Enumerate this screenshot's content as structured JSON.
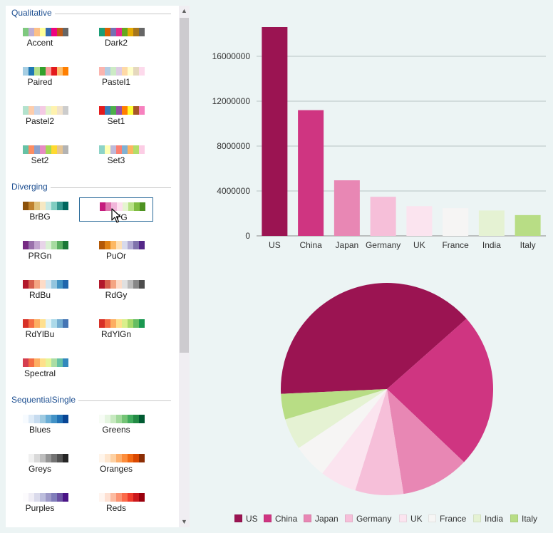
{
  "sidebar": {
    "groups": [
      {
        "title": "Qualitative",
        "palettes": [
          {
            "name": "Accent",
            "colors": [
              "#7fc97f",
              "#beaed4",
              "#fdc086",
              "#ffff99",
              "#386cb0",
              "#f0027f",
              "#bf5b17",
              "#666666"
            ]
          },
          {
            "name": "Dark2",
            "colors": [
              "#1b9e77",
              "#d95f02",
              "#7570b3",
              "#e7298a",
              "#66a61e",
              "#e6ab02",
              "#a6761d",
              "#666666"
            ]
          },
          {
            "name": "Paired",
            "colors": [
              "#a6cee3",
              "#1f78b4",
              "#b2df8a",
              "#33a02c",
              "#fb9a99",
              "#e31a1c",
              "#fdbf6f",
              "#ff7f00"
            ]
          },
          {
            "name": "Pastel1",
            "colors": [
              "#fbb4ae",
              "#b3cde3",
              "#ccebc5",
              "#decbe4",
              "#fed9a6",
              "#ffffcc",
              "#e5d8bd",
              "#fddaec"
            ]
          },
          {
            "name": "Pastel2",
            "colors": [
              "#b3e2cd",
              "#fdcdac",
              "#cbd5e8",
              "#f4cae4",
              "#e6f5c9",
              "#fff2ae",
              "#f1e2cc",
              "#cccccc"
            ]
          },
          {
            "name": "Set1",
            "colors": [
              "#e41a1c",
              "#377eb8",
              "#4daf4a",
              "#984ea3",
              "#ff7f00",
              "#ffff33",
              "#a65628",
              "#f781bf"
            ]
          },
          {
            "name": "Set2",
            "colors": [
              "#66c2a5",
              "#fc8d62",
              "#8da0cb",
              "#e78ac3",
              "#a6d854",
              "#ffd92f",
              "#e5c494",
              "#b3b3b3"
            ]
          },
          {
            "name": "Set3",
            "colors": [
              "#8dd3c7",
              "#ffffb3",
              "#bebada",
              "#fb8072",
              "#80b1d3",
              "#fdb462",
              "#b3de69",
              "#fccde5"
            ]
          }
        ]
      },
      {
        "title": "Diverging",
        "palettes": [
          {
            "name": "BrBG",
            "colors": [
              "#8c510a",
              "#bf812d",
              "#dfc27d",
              "#f6e8c3",
              "#c7eae5",
              "#80cdc1",
              "#35978f",
              "#01665e"
            ]
          },
          {
            "name": "PiYG",
            "colors": [
              "#c51b7d",
              "#de77ae",
              "#f1b6da",
              "#fde0ef",
              "#e6f5d0",
              "#b8e186",
              "#7fbc41",
              "#4d9221"
            ]
          },
          {
            "name": "PRGn",
            "colors": [
              "#762a83",
              "#9970ab",
              "#c2a5cf",
              "#e7d4e8",
              "#d9f0d3",
              "#a6dba0",
              "#5aae61",
              "#1b7837"
            ]
          },
          {
            "name": "PuOr",
            "colors": [
              "#b35806",
              "#e08214",
              "#fdb863",
              "#fee0b6",
              "#d8daeb",
              "#b2abd2",
              "#8073ac",
              "#542788"
            ]
          },
          {
            "name": "RdBu",
            "colors": [
              "#b2182b",
              "#d6604d",
              "#f4a582",
              "#fddbc7",
              "#d1e5f0",
              "#92c5de",
              "#4393c3",
              "#2166ac"
            ]
          },
          {
            "name": "RdGy",
            "colors": [
              "#b2182b",
              "#d6604d",
              "#f4a582",
              "#fddbc7",
              "#e0e0e0",
              "#bababa",
              "#878787",
              "#4d4d4d"
            ]
          },
          {
            "name": "RdYlBu",
            "colors": [
              "#d73027",
              "#f46d43",
              "#fdae61",
              "#fee090",
              "#e0f3f8",
              "#abd9e9",
              "#74add1",
              "#4575b4"
            ]
          },
          {
            "name": "RdYlGn",
            "colors": [
              "#d73027",
              "#f46d43",
              "#fdae61",
              "#fee08b",
              "#d9ef8b",
              "#a6d96a",
              "#66bd63",
              "#1a9850"
            ]
          },
          {
            "name": "Spectral",
            "colors": [
              "#d53e4f",
              "#f46d43",
              "#fdae61",
              "#fee08b",
              "#e6f598",
              "#abdda4",
              "#66c2a5",
              "#3288bd"
            ]
          }
        ]
      },
      {
        "title": "SequentialSingle",
        "palettes": [
          {
            "name": "Blues",
            "colors": [
              "#f7fbff",
              "#deebf7",
              "#c6dbef",
              "#9ecae1",
              "#6baed6",
              "#4292c6",
              "#2171b5",
              "#084594"
            ]
          },
          {
            "name": "Greens",
            "colors": [
              "#f7fcf5",
              "#e5f5e0",
              "#c7e9c0",
              "#a1d99b",
              "#74c476",
              "#41ab5d",
              "#238b45",
              "#005a32"
            ]
          },
          {
            "name": "Greys",
            "colors": [
              "#ffffff",
              "#f0f0f0",
              "#d9d9d9",
              "#bdbdbd",
              "#969696",
              "#737373",
              "#525252",
              "#252525"
            ]
          },
          {
            "name": "Oranges",
            "colors": [
              "#fff5eb",
              "#fee6ce",
              "#fdd0a2",
              "#fdae6b",
              "#fd8d3c",
              "#f16913",
              "#d94801",
              "#8c2d04"
            ]
          },
          {
            "name": "Purples",
            "colors": [
              "#fcfbfd",
              "#efedf5",
              "#dadaeb",
              "#bcbddc",
              "#9e9ac8",
              "#807dba",
              "#6a51a3",
              "#4a1486"
            ]
          },
          {
            "name": "Reds",
            "colors": [
              "#fff5f0",
              "#fee0d2",
              "#fcbba1",
              "#fc9272",
              "#fb6a4a",
              "#ef3b2c",
              "#cb181d",
              "#99000d"
            ]
          }
        ]
      }
    ],
    "selected": "PiYG",
    "selected_label_visible": "YG",
    "scroll_up_glyph": "▲",
    "scroll_down_glyph": "▼"
  },
  "chart_data": [
    {
      "type": "bar",
      "categories": [
        "US",
        "China",
        "Japan",
        "Germany",
        "UK",
        "France",
        "India",
        "Italy"
      ],
      "values": [
        18600000,
        11200000,
        4950000,
        3480000,
        2650000,
        2470000,
        2260000,
        1850000
      ],
      "colors": [
        "#9b1452",
        "#cf3581",
        "#e887b4",
        "#f6bfd9",
        "#fbe4ef",
        "#f6f5f4",
        "#e5f2d3",
        "#b8dd85"
      ],
      "ylim": [
        0,
        18600000
      ],
      "yticks": [
        0,
        4000000,
        8000000,
        12000000,
        16000000
      ],
      "ytick_labels": [
        "0",
        "4000000",
        "8000000",
        "12000000",
        "16000000"
      ],
      "grid": true
    },
    {
      "type": "pie",
      "categories": [
        "US",
        "China",
        "Japan",
        "Germany",
        "UK",
        "France",
        "India",
        "Italy"
      ],
      "values": [
        18600000,
        11200000,
        4950000,
        3480000,
        2650000,
        2470000,
        2260000,
        1850000
      ],
      "colors": [
        "#9b1452",
        "#cf3581",
        "#e887b4",
        "#f6bfd9",
        "#fbe4ef",
        "#f6f5f4",
        "#e5f2d3",
        "#b8dd85"
      ],
      "legend": "bottom-right"
    }
  ]
}
